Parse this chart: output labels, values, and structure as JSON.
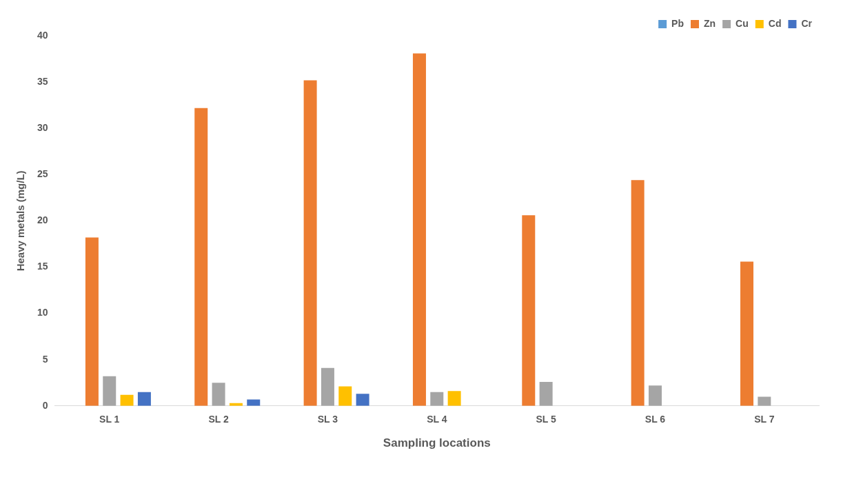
{
  "chart_data": {
    "type": "bar",
    "xlabel": "Sampling locations",
    "ylabel": "Heavy metals (mg/L)",
    "categories": [
      "SL 1",
      "SL 2",
      "SL 3",
      "SL 4",
      "SL 5",
      "SL 6",
      "SL 7"
    ],
    "series": [
      {
        "name": "Pb",
        "color": "#5b9bd5",
        "values": [
          0,
          0,
          0,
          0,
          0,
          0,
          0
        ]
      },
      {
        "name": "Zn",
        "color": "#ed7d31",
        "values": [
          18.2,
          32.2,
          35.2,
          38.1,
          20.6,
          24.4,
          15.6
        ]
      },
      {
        "name": "Cu",
        "color": "#a5a5a5",
        "values": [
          3.2,
          2.5,
          4.1,
          1.5,
          2.6,
          2.2,
          1.0
        ]
      },
      {
        "name": "Cd",
        "color": "#ffc000",
        "values": [
          1.2,
          0.3,
          2.1,
          1.6,
          0,
          0,
          0
        ]
      },
      {
        "name": "Cr",
        "color": "#4472c4",
        "values": [
          1.5,
          0.7,
          1.3,
          0,
          0,
          0,
          0
        ]
      }
    ],
    "ylim": [
      0,
      40
    ],
    "yticks": [
      0,
      5,
      10,
      15,
      20,
      25,
      30,
      35,
      40
    ],
    "grid": false,
    "legend": "top right"
  }
}
